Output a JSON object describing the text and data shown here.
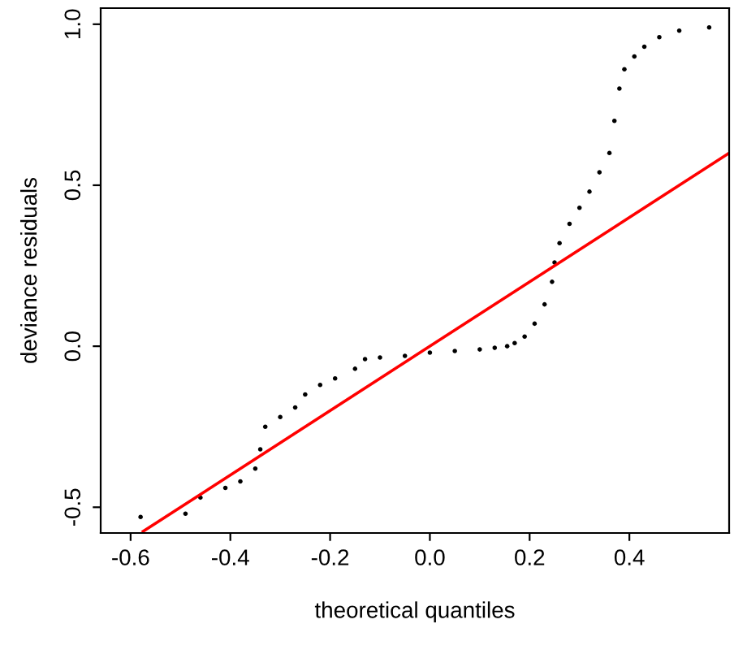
{
  "chart_data": {
    "type": "scatter",
    "xlabel": "theoretical quantiles",
    "ylabel": "deviance residuals",
    "series": [
      {
        "color": "#000000",
        "x": [
          -0.58,
          -0.49,
          -0.46,
          -0.41,
          -0.38,
          -0.35,
          -0.34,
          -0.33,
          -0.3,
          -0.27,
          -0.25,
          -0.22,
          -0.19,
          -0.15,
          -0.13,
          -0.1,
          -0.05,
          0.0,
          0.05,
          0.1,
          0.13,
          0.155,
          0.17,
          0.19,
          0.21,
          0.23,
          0.245,
          0.25,
          0.26,
          0.28,
          0.3,
          0.32,
          0.34,
          0.36,
          0.37,
          0.38,
          0.39,
          0.41,
          0.43,
          0.46,
          0.5,
          0.56
        ],
        "values": [
          -0.53,
          -0.52,
          -0.47,
          -0.44,
          -0.42,
          -0.38,
          -0.32,
          -0.25,
          -0.22,
          -0.19,
          -0.15,
          -0.12,
          -0.1,
          -0.07,
          -0.04,
          -0.035,
          -0.03,
          -0.02,
          -0.015,
          -0.01,
          -0.005,
          0.0,
          0.01,
          0.03,
          0.07,
          0.13,
          0.2,
          0.26,
          0.32,
          0.38,
          0.43,
          0.48,
          0.54,
          0.6,
          0.7,
          0.8,
          0.86,
          0.9,
          0.93,
          0.96,
          0.98,
          0.99
        ]
      },
      {
        "type": "line",
        "color": "#ff0000",
        "line_style": "solid",
        "x": [
          -0.575,
          0.6
        ],
        "values": [
          -0.575,
          0.6
        ]
      }
    ],
    "xlim": [
      -0.66,
      0.6
    ],
    "ylim": [
      -0.58,
      1.05
    ],
    "xticks": [
      {
        "value": -0.6,
        "label": "-0.6"
      },
      {
        "value": -0.4,
        "label": "-0.4"
      },
      {
        "value": -0.2,
        "label": "-0.2"
      },
      {
        "value": 0.0,
        "label": "0.0"
      },
      {
        "value": 0.2,
        "label": "0.2"
      },
      {
        "value": 0.4,
        "label": "0.4"
      }
    ],
    "yticks": [
      {
        "value": -0.5,
        "label": "-0.5"
      },
      {
        "value": 0.0,
        "label": "0.0"
      },
      {
        "value": 0.5,
        "label": "0.5"
      },
      {
        "value": 1.0,
        "label": "1.0"
      }
    ],
    "grid": false,
    "legend": false
  }
}
